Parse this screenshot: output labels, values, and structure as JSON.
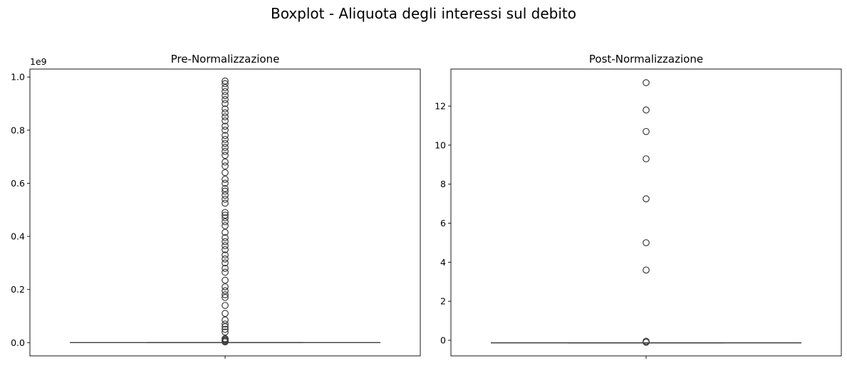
{
  "chart_data": [
    {
      "type": "box",
      "suptitle": "Boxplot - Aliquota degli interessi sul debito",
      "title": "Pre-Normalizzazione",
      "xlabel": "",
      "ylabel": "",
      "ylim": [
        -0.05,
        1.03
      ],
      "y_scale_factor": 1000000000,
      "y_offset_label": "1e9",
      "yticks": [
        0.0,
        0.2,
        0.4,
        0.6,
        0.8,
        1.0
      ],
      "ytick_labels": [
        "0.0",
        "0.2",
        "0.4",
        "0.6",
        "0.8",
        "1.0"
      ],
      "grid": false,
      "box": {
        "min": 0.0,
        "q1": 0.0,
        "median": 0.0,
        "q3": 0.0,
        "max": 0.0
      },
      "outliers": [
        0.003,
        0.006,
        0.009,
        0.012,
        0.015,
        0.04,
        0.05,
        0.06,
        0.07,
        0.085,
        0.11,
        0.14,
        0.17,
        0.18,
        0.195,
        0.21,
        0.235,
        0.265,
        0.28,
        0.3,
        0.315,
        0.33,
        0.35,
        0.365,
        0.38,
        0.395,
        0.415,
        0.44,
        0.455,
        0.47,
        0.48,
        0.49,
        0.525,
        0.54,
        0.555,
        0.57,
        0.58,
        0.6,
        0.615,
        0.64,
        0.665,
        0.68,
        0.705,
        0.72,
        0.735,
        0.75,
        0.765,
        0.78,
        0.8,
        0.815,
        0.835,
        0.85,
        0.865,
        0.88,
        0.9,
        0.915,
        0.93,
        0.945,
        0.96,
        0.975,
        0.985
      ]
    },
    {
      "type": "box",
      "title": "Post-Normalizzazione",
      "xlabel": "",
      "ylabel": "",
      "ylim": [
        -0.8,
        13.9
      ],
      "yticks": [
        0,
        2,
        4,
        6,
        8,
        10,
        12
      ],
      "ytick_labels": [
        "0",
        "2",
        "4",
        "6",
        "8",
        "10",
        "12"
      ],
      "grid": false,
      "box": {
        "min": -0.13,
        "q1": -0.13,
        "median": -0.13,
        "q3": -0.13,
        "max": -0.13
      },
      "outliers": [
        -0.1,
        -0.05,
        3.6,
        5.0,
        7.25,
        9.3,
        10.7,
        11.8,
        13.2
      ]
    }
  ]
}
